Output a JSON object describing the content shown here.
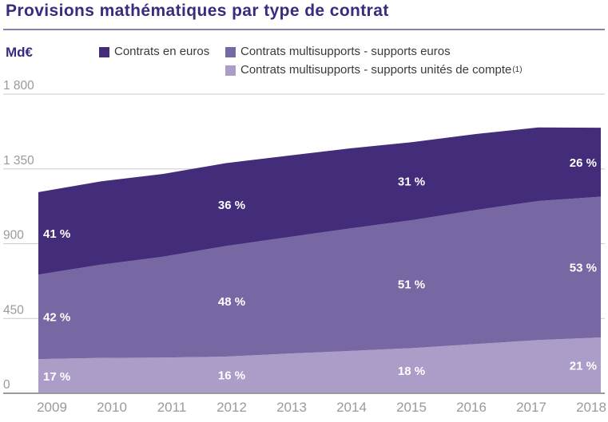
{
  "title": "Provisions mathématiques par type de contrat",
  "y_axis_unit": "Md€",
  "colors": {
    "title": "#3b2a7d",
    "euros_dark": "#432d7b",
    "multisupport_euros_medium": "#7767a3",
    "unites_de_compte_light": "#ab9dc8",
    "axis_gray": "#9a9a9a",
    "gridline_gray": "#cbcbcb",
    "legend_text": "#3a3a3a",
    "divider_purple": "#8b80ab"
  },
  "legend": [
    {
      "label": "Contrats en euros",
      "color": "#432d7b"
    },
    {
      "label": "Contrats multisupports - supports euros",
      "color": "#7767a3"
    },
    {
      "label": "Contrats multisupports - supports unités de compte",
      "suffix": "(1)",
      "color": "#ab9dc8"
    }
  ],
  "chart_data": {
    "type": "area",
    "stacked": true,
    "title": "Provisions mathématiques par type de contrat",
    "xlabel": "",
    "ylabel": "Md€",
    "ylim": [
      0,
      1800
    ],
    "grid": "horizontal",
    "legend_position": "top",
    "x": [
      2009,
      2010,
      2011,
      2012,
      2013,
      2014,
      2015,
      2016,
      2017,
      2018
    ],
    "yticks": [
      {
        "value": 0,
        "text": "0"
      },
      {
        "value": 450,
        "text": "450"
      },
      {
        "value": 900,
        "text": "900"
      },
      {
        "value": 1350,
        "text": "1 350"
      },
      {
        "value": 1800,
        "text": "1 800"
      }
    ],
    "totals_md_euro": [
      1210,
      1275,
      1320,
      1385,
      1430,
      1474,
      1512,
      1560,
      1600,
      1598
    ],
    "series_note": "values in Md€ estimated from axis; series listed bottom-to-top of stack",
    "series": [
      {
        "name": "Contrats multisupports - supports unités de compte",
        "color": "#ab9dc8",
        "values": [
          206,
          213,
          215,
          221,
          239,
          255,
          272,
          296,
          320,
          336
        ],
        "pct_labels": [
          {
            "year": 2009,
            "text": "17 %"
          },
          {
            "year": 2012,
            "text": "16 %"
          },
          {
            "year": 2015,
            "text": "18 %"
          },
          {
            "year": 2018,
            "text": "21 %"
          }
        ]
      },
      {
        "name": "Contrats multisupports - supports euros",
        "color": "#7767a3",
        "values": [
          508,
          561,
          607,
          665,
          701,
          737,
          771,
          807,
          837,
          847
        ],
        "pct_labels": [
          {
            "year": 2009,
            "text": "42 %"
          },
          {
            "year": 2012,
            "text": "48 %"
          },
          {
            "year": 2015,
            "text": "51 %"
          },
          {
            "year": 2018,
            "text": "53 %"
          }
        ]
      },
      {
        "name": "Contrats en euros",
        "color": "#432d7b",
        "values": [
          496,
          501,
          498,
          499,
          490,
          482,
          469,
          457,
          443,
          415
        ],
        "pct_labels": [
          {
            "year": 2009,
            "text": "41 %"
          },
          {
            "year": 2012,
            "text": "36 %"
          },
          {
            "year": 2015,
            "text": "31 %"
          },
          {
            "year": 2018,
            "text": "26 %"
          }
        ]
      }
    ]
  }
}
